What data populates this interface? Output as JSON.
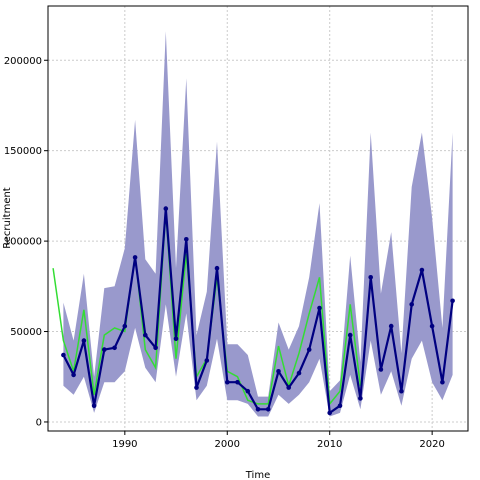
{
  "chart_data": {
    "type": "line",
    "title": "",
    "xlabel": "Time",
    "ylabel": "Recruitment",
    "xlim": [
      1982.5,
      2023.5
    ],
    "ylim": [
      -5000,
      230000
    ],
    "grid": true,
    "legend": null,
    "x_ticks": [
      1990,
      2000,
      2010,
      2020
    ],
    "y_ticks": [
      0,
      50000,
      100000,
      150000,
      200000
    ],
    "colors": {
      "band": "#9999cc",
      "estimate": "#000080",
      "observed": "#33dd33",
      "grid": "#cccccc"
    },
    "band": {
      "name": "",
      "x": [
        1984,
        1985,
        1986,
        1987,
        1988,
        1989,
        1990,
        1991,
        1992,
        1993,
        1994,
        1995,
        1996,
        1997,
        1998,
        1999,
        2000,
        2001,
        2002,
        2003,
        2004,
        2005,
        2006,
        2007,
        2008,
        2009,
        2010,
        2011,
        2012,
        2013,
        2014,
        2015,
        2016,
        2017,
        2018,
        2019,
        2020,
        2021,
        2022
      ],
      "upper": [
        66000,
        45000,
        82000,
        25000,
        74000,
        75000,
        96000,
        167000,
        90000,
        82000,
        216000,
        85000,
        190000,
        48000,
        72000,
        155000,
        43000,
        43000,
        37000,
        14000,
        14000,
        55000,
        40000,
        53000,
        80000,
        121000,
        17000,
        23000,
        92000,
        33000,
        160000,
        71000,
        105000,
        38000,
        130000,
        160000,
        113000,
        52000,
        160000
      ],
      "lower": [
        20000,
        15000,
        25000,
        5000,
        22000,
        22000,
        28000,
        52000,
        30000,
        22000,
        65000,
        25000,
        60000,
        12000,
        20000,
        46000,
        12000,
        12000,
        10000,
        3000,
        3000,
        15000,
        10000,
        15000,
        22000,
        35000,
        3000,
        5000,
        26000,
        7000,
        45000,
        15000,
        28000,
        9000,
        35000,
        45000,
        22000,
        12000,
        26000
      ]
    },
    "series": [
      {
        "name": "",
        "x": [
          1984,
          1985,
          1986,
          1987,
          1988,
          1989,
          1990,
          1991,
          1992,
          1993,
          1994,
          1995,
          1996,
          1997,
          1998,
          1999,
          2000,
          2001,
          2002,
          2003,
          2004,
          2005,
          2006,
          2007,
          2008,
          2009,
          2010,
          2011,
          2012,
          2013,
          2014,
          2015,
          2016,
          2017,
          2018,
          2019,
          2020,
          2021,
          2022
        ],
        "values": [
          37000,
          26000,
          45000,
          9000,
          40000,
          41000,
          53000,
          91000,
          48000,
          41000,
          118000,
          46000,
          101000,
          19000,
          34000,
          85000,
          22000,
          22000,
          17000,
          7000,
          7000,
          28000,
          19000,
          27000,
          40000,
          63000,
          5000,
          9000,
          48000,
          13000,
          80000,
          29000,
          53000,
          17000,
          65000,
          84000,
          53000,
          22000,
          67000
        ]
      },
      {
        "name": "",
        "x": [
          1983,
          1984,
          1985,
          1986,
          1987,
          1988,
          1989,
          1990,
          1991,
          1992,
          1993,
          1994,
          1995,
          1996,
          1997,
          1998,
          1999,
          2000,
          2001,
          2002,
          2003,
          2004,
          2005,
          2006,
          2007,
          2008,
          2009,
          2010,
          2011,
          2012,
          2013
        ],
        "values": [
          85000,
          45000,
          28000,
          62000,
          15000,
          48000,
          52000,
          50000,
          92000,
          40000,
          30000,
          116000,
          35000,
          93000,
          25000,
          35000,
          80000,
          28000,
          25000,
          12000,
          10000,
          10000,
          42000,
          20000,
          38000,
          60000,
          80000,
          10000,
          17000,
          65000,
          20000
        ]
      }
    ]
  }
}
